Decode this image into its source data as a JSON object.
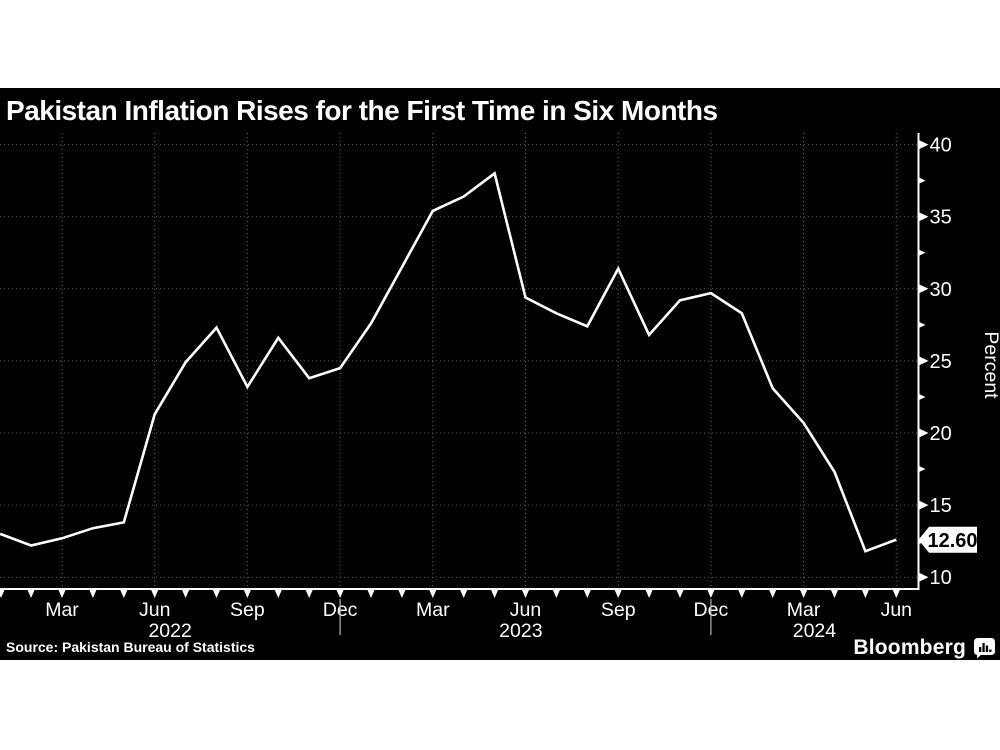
{
  "header": {
    "title": "Pakistan Inflation Rises for the First Time in Six Months"
  },
  "footer": {
    "source": "Source: Pakistan Bureau of Statistics",
    "brand": "Bloomberg",
    "brand_icon": "bar-chart-bubble-icon"
  },
  "chart_data": {
    "type": "line",
    "title": "Pakistan Inflation Rises for the First Time in Six Months",
    "ylabel": "Percent",
    "ylim": [
      9,
      41
    ],
    "grid": true,
    "background": "#000000",
    "line_color": "#ffffff",
    "grid_color": "#5e5e5e",
    "yticks_major": [
      10,
      15,
      20,
      25,
      30,
      35,
      40
    ],
    "yticks_minor": [
      12.5,
      17.5,
      22.5,
      27.5,
      32.5,
      37.5
    ],
    "x": [
      "Jan 2022",
      "Feb 2022",
      "Mar 2022",
      "Apr 2022",
      "May 2022",
      "Jun 2022",
      "Jul 2022",
      "Aug 2022",
      "Sep 2022",
      "Oct 2022",
      "Nov 2022",
      "Dec 2022",
      "Jan 2023",
      "Feb 2023",
      "Mar 2023",
      "Apr 2023",
      "May 2023",
      "Jun 2023",
      "Jul 2023",
      "Aug 2023",
      "Sep 2023",
      "Oct 2023",
      "Nov 2023",
      "Dec 2023",
      "Jan 2024",
      "Feb 2024",
      "Mar 2024",
      "Apr 2024",
      "May 2024",
      "Jun 2024"
    ],
    "series": [
      {
        "name": "Inflation rate (percent)",
        "values": [
          13.0,
          12.2,
          12.7,
          13.4,
          13.8,
          21.3,
          24.9,
          27.3,
          23.2,
          26.6,
          23.8,
          24.5,
          27.6,
          31.5,
          35.4,
          36.4,
          38.0,
          29.4,
          28.3,
          27.4,
          31.4,
          26.8,
          29.2,
          29.7,
          28.3,
          23.1,
          20.7,
          17.3,
          11.8,
          12.6
        ]
      }
    ],
    "last_value_label": "12.60",
    "xtick_labels": [
      {
        "i": 2,
        "label": "Mar"
      },
      {
        "i": 5,
        "label": "Jun"
      },
      {
        "i": 8,
        "label": "Sep"
      },
      {
        "i": 11,
        "label": "Dec"
      },
      {
        "i": 14,
        "label": "Mar"
      },
      {
        "i": 17,
        "label": "Jun"
      },
      {
        "i": 20,
        "label": "Sep"
      },
      {
        "i": 23,
        "label": "Dec"
      },
      {
        "i": 26,
        "label": "Mar"
      },
      {
        "i": 29,
        "label": "Jun"
      }
    ],
    "year_labels": [
      {
        "i": 5.5,
        "label": "2022"
      },
      {
        "i": 16.85,
        "label": "2023"
      },
      {
        "i": 26.35,
        "label": "2024"
      }
    ],
    "year_separators_i": [
      11,
      23
    ],
    "legend": "none"
  }
}
